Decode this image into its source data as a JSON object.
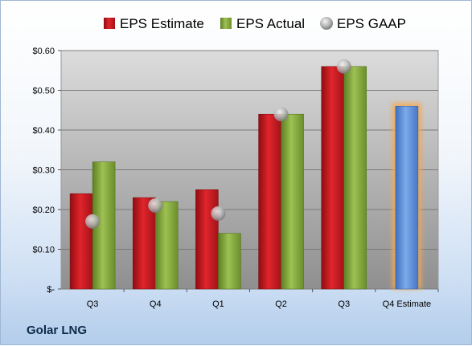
{
  "company": "Golar LNG",
  "chart_data": {
    "type": "bar",
    "categories": [
      "Q3",
      "Q4",
      "Q1",
      "Q2",
      "Q3",
      "Q4 Estimate"
    ],
    "series": [
      {
        "name": "EPS Estimate",
        "values": [
          0.24,
          0.23,
          0.25,
          0.44,
          0.56,
          null
        ],
        "color": "#c0151b"
      },
      {
        "name": "EPS Actual",
        "values": [
          0.32,
          0.22,
          0.14,
          0.44,
          0.56,
          null
        ],
        "color": "#7ea33a"
      },
      {
        "name": "EPS GAAP",
        "type": "scatter",
        "values": [
          0.17,
          0.21,
          0.19,
          0.44,
          0.56,
          null
        ],
        "color": "#a9a9a9"
      },
      {
        "name": "Q4 Estimate",
        "values": [
          null,
          null,
          null,
          null,
          null,
          0.46
        ],
        "color": "#5b8fd6",
        "highlight": "#f7a84d"
      }
    ],
    "ylim": [
      0,
      0.6
    ],
    "yticks": [
      0,
      0.1,
      0.2,
      0.3,
      0.4,
      0.5,
      0.6
    ],
    "ytick_labels": [
      "$-",
      "$0.10",
      "$0.20",
      "$0.30",
      "$0.40",
      "$0.50",
      "$0.60"
    ],
    "legend_position": "top",
    "grid": true,
    "plot_background": "gradient-gray"
  }
}
